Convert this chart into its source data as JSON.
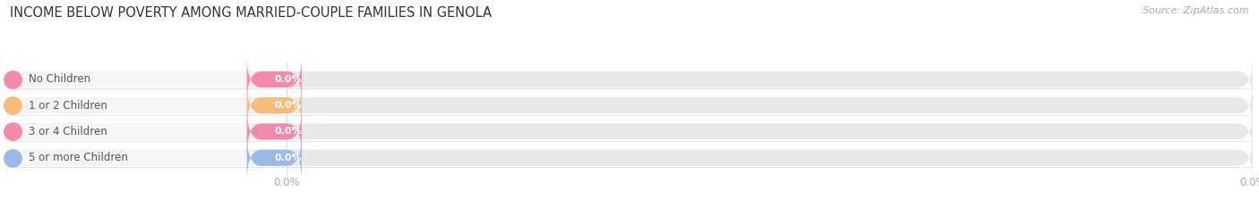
{
  "title": "INCOME BELOW POVERTY AMONG MARRIED-COUPLE FAMILIES IN GENOLA",
  "source": "Source: ZipAtlas.com",
  "categories": [
    "No Children",
    "1 or 2 Children",
    "3 or 4 Children",
    "5 or more Children"
  ],
  "values": [
    0.0,
    0.0,
    0.0,
    0.0
  ],
  "bar_colors": [
    "#f48aaa",
    "#f5bc7a",
    "#f48aaa",
    "#9ab8e8"
  ],
  "bar_bg_color": "#e8e8e8",
  "label_bg_color": "#f5f5f5",
  "dot_colors": [
    "#f48aaa",
    "#f5bc7a",
    "#f48aaa",
    "#9ab8e8"
  ],
  "label_color": "#555555",
  "value_label_color": "#ffffff",
  "title_color": "#333333",
  "source_color": "#aaaaaa",
  "figsize": [
    14.06,
    2.33
  ],
  "dpi": 100,
  "background_color": "#ffffff",
  "tick_label_color": "#aaaaaa",
  "gridline_color": "#dddddd"
}
